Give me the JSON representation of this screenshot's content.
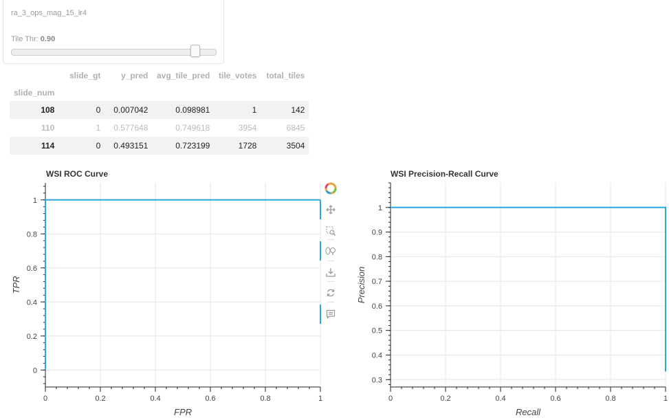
{
  "controls": {
    "model_name": "ra_3_ops_mag_15_lr4",
    "threshold_label": "Tile Thr:",
    "threshold_value": "0.90",
    "threshold_fraction": 0.9
  },
  "table": {
    "columns": [
      "slide_gt",
      "y_pred",
      "avg_tile_pred",
      "tile_votes",
      "total_tiles"
    ],
    "index_name": "slide_num",
    "rows": [
      {
        "idx": "108",
        "cells": [
          "0",
          "0.007042",
          "0.098981",
          "1",
          "142"
        ]
      },
      {
        "idx": "110",
        "cells": [
          "1",
          "0.577648",
          "0.749618",
          "3954",
          "6845"
        ]
      },
      {
        "idx": "114",
        "cells": [
          "0",
          "0.493151",
          "0.723199",
          "1728",
          "3504"
        ]
      }
    ]
  },
  "toolbar": {
    "icons": [
      "bokeh-logo-icon",
      "pan-icon",
      "box-zoom-icon",
      "wheel-zoom-icon",
      "save-icon",
      "reset-icon",
      "hover-icon"
    ]
  },
  "colors": {
    "line": "#1f77b4",
    "accent": "#26aae1"
  },
  "chart_data": [
    {
      "type": "line",
      "title": "WSI ROC Curve",
      "xlabel": "FPR",
      "ylabel": "TPR",
      "xlim": [
        0,
        1
      ],
      "ylim": [
        -0.1,
        1.1
      ],
      "xticks": [
        "0",
        "0.2",
        "0.4",
        "0.6",
        "0.8",
        "1"
      ],
      "yticks": [
        "0",
        "0.2",
        "0.4",
        "0.6",
        "0.8",
        "1"
      ],
      "grid": true,
      "series": [
        {
          "x": [
            0,
            0,
            1
          ],
          "y": [
            0,
            1,
            1
          ]
        }
      ]
    },
    {
      "type": "line",
      "title": "WSI Precision-Recall Curve",
      "xlabel": "Recall",
      "ylabel": "Precision",
      "xlim": [
        0,
        1
      ],
      "ylim": [
        0.27,
        1.1
      ],
      "xticks": [
        "0",
        "0.2",
        "0.4",
        "0.6",
        "0.8",
        "1"
      ],
      "yticks": [
        "0.3",
        "0.4",
        "0.5",
        "0.6",
        "0.7",
        "0.8",
        "0.9",
        "1"
      ],
      "grid": true,
      "series": [
        {
          "x": [
            0,
            1,
            1
          ],
          "y": [
            1,
            1,
            0.333
          ]
        }
      ]
    }
  ]
}
